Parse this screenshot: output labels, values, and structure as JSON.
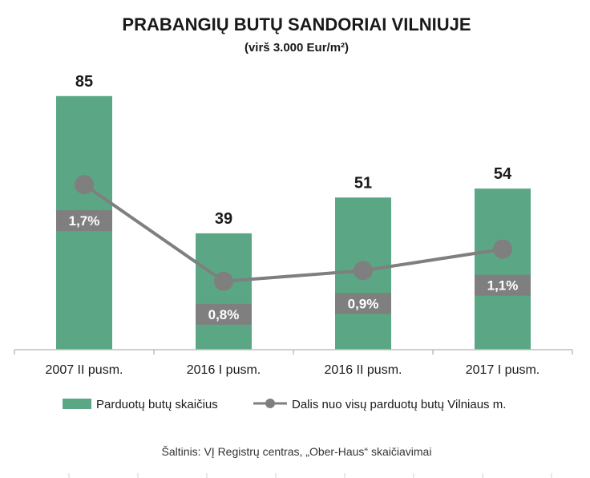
{
  "chart_data": {
    "type": "bar",
    "title": "PRABANGIŲ BUTŲ SANDORIAI VILNIUJE",
    "subtitle": "(virš 3.000 Eur/m²)",
    "categories": [
      "2007 II pusm.",
      "2016 I pusm.",
      "2016 II pusm.",
      "2017 I pusm."
    ],
    "series": [
      {
        "name": "Parduotų butų skaičius",
        "type": "bar",
        "values": [
          85,
          39,
          51,
          54
        ],
        "labels": [
          "85",
          "39",
          "51",
          "54"
        ],
        "color": "#5ba785"
      },
      {
        "name": "Dalis nuo visų parduotų butų Vilniaus m.",
        "type": "line",
        "values": [
          1.7,
          0.8,
          0.9,
          1.1
        ],
        "labels": [
          "1,7%",
          "0,8%",
          "0,9%",
          "1,1%"
        ],
        "color": "#7f7f7f"
      }
    ],
    "legend_position": "bottom",
    "grid": false
  },
  "source": "Šaltinis: VĮ Registrų centras, „Ober-Haus“ skaičiavimai",
  "colors": {
    "bar": "#5ba785",
    "line": "#7f7f7f",
    "label_box": "#7f7f7f",
    "axis": "#bfbfbf"
  }
}
